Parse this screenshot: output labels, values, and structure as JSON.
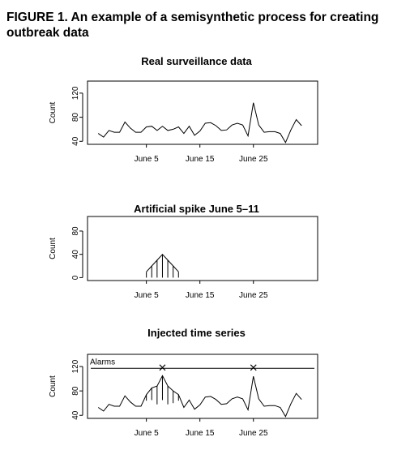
{
  "figure": {
    "title": "FIGURE 1. An example of a semisynthetic process for creating outbreak data"
  },
  "chart_data": [
    {
      "type": "line",
      "title": "Real surveillance data",
      "xlabel": "",
      "ylabel": "Count",
      "x_ticks": [
        {
          "day": 5,
          "label": "June 5"
        },
        {
          "day": 15,
          "label": "June 15"
        },
        {
          "day": 25,
          "label": "June 25"
        }
      ],
      "y_ticks": [
        40,
        80,
        120
      ],
      "xlim": [
        -6,
        37
      ],
      "ylim": [
        35,
        140
      ],
      "series": [
        {
          "x": [
            -4,
            -3,
            -2,
            -1,
            0,
            1,
            2,
            3,
            4,
            5,
            6,
            7,
            8,
            9,
            10,
            11,
            12,
            13,
            14,
            15,
            16,
            17,
            18,
            19,
            20,
            21,
            22,
            23,
            24,
            25,
            26,
            27,
            28,
            29,
            30,
            31,
            32,
            33,
            34
          ],
          "values": [
            53,
            47,
            58,
            55,
            55,
            72,
            62,
            55,
            55,
            64,
            65,
            58,
            65,
            58,
            60,
            64,
            53,
            65,
            50,
            57,
            70,
            71,
            66,
            58,
            59,
            67,
            70,
            67,
            49,
            104,
            67,
            55,
            56,
            56,
            53,
            38,
            59,
            76,
            66
          ]
        }
      ]
    },
    {
      "type": "line",
      "title": "Artificial spike June 5–11",
      "xlabel": "",
      "ylabel": "Count",
      "x_ticks": [
        {
          "day": 5,
          "label": "June 5"
        },
        {
          "day": 15,
          "label": "June 15"
        },
        {
          "day": 25,
          "label": "June 25"
        }
      ],
      "y_ticks": [
        0,
        40,
        80
      ],
      "xlim": [
        -6,
        37
      ],
      "ylim": [
        -5,
        105
      ],
      "series": [
        {
          "x": [
            5,
            6,
            7,
            8,
            9,
            10,
            11
          ],
          "values": [
            10,
            20,
            30,
            40,
            30,
            20,
            10
          ]
        }
      ]
    },
    {
      "type": "line",
      "title": "Injected time series",
      "xlabel": "",
      "ylabel": "Count",
      "x_ticks": [
        {
          "day": 5,
          "label": "June 5"
        },
        {
          "day": 15,
          "label": "June 15"
        },
        {
          "day": 25,
          "label": "June 25"
        }
      ],
      "y_ticks": [
        40,
        80,
        120
      ],
      "xlim": [
        -6,
        37
      ],
      "ylim": [
        35,
        140
      ],
      "series": [
        {
          "x": [
            -4,
            -3,
            -2,
            -1,
            0,
            1,
            2,
            3,
            4,
            5,
            6,
            7,
            8,
            9,
            10,
            11,
            12,
            13,
            14,
            15,
            16,
            17,
            18,
            19,
            20,
            21,
            22,
            23,
            24,
            25,
            26,
            27,
            28,
            29,
            30,
            31,
            32,
            33,
            34
          ],
          "values": [
            53,
            47,
            58,
            55,
            55,
            72,
            62,
            55,
            55,
            74,
            85,
            88,
            105,
            88,
            80,
            74,
            53,
            65,
            50,
            57,
            70,
            71,
            66,
            58,
            59,
            67,
            70,
            67,
            49,
            104,
            67,
            55,
            56,
            56,
            53,
            38,
            59,
            76,
            66
          ]
        }
      ],
      "threshold": 117,
      "annotations": [
        {
          "text": "Alarms"
        }
      ],
      "alarm_days": [
        8,
        25
      ]
    }
  ]
}
